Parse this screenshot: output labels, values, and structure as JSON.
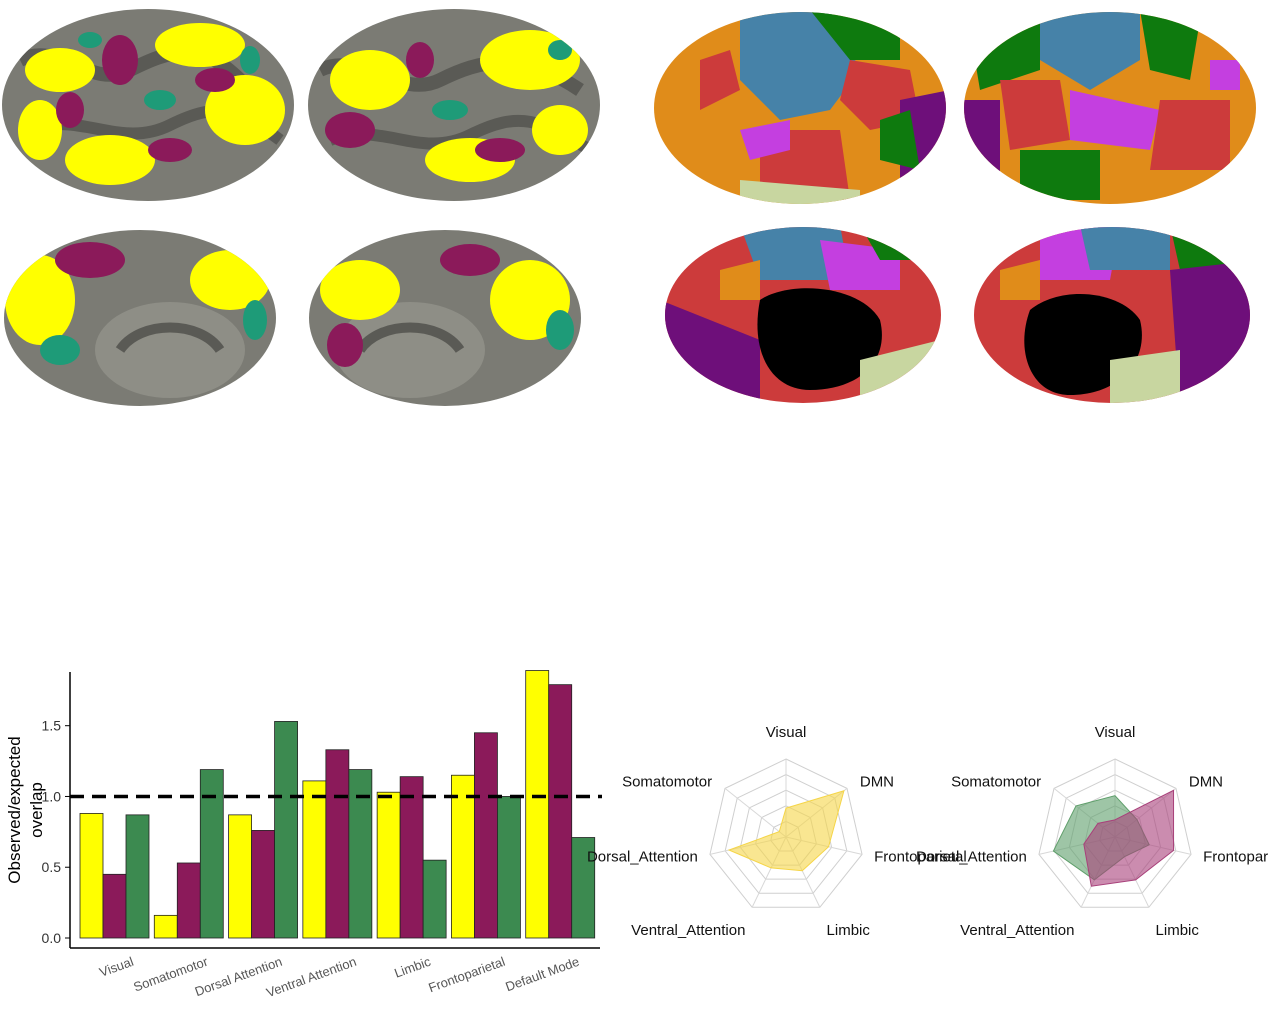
{
  "colors": {
    "yellow": "#FFFF00",
    "magenta": "#8B1A5A",
    "green": "#3C8A50",
    "teal": "#1E9B78",
    "cortex_gray": "#7B7B74",
    "cortex_dark": "#5A5A55",
    "net_blue": "#4682A8",
    "net_green": "#0E7A0E",
    "net_orange": "#E08C1A",
    "net_red": "#CC3B3B",
    "net_violet": "#C43FE0",
    "net_purple": "#6E0F7A",
    "net_cream": "#C8D6A0",
    "radar_fill_yellow": "#F5D547",
    "radar_fill_green": "#5E9E6A",
    "radar_fill_magenta": "#A8407A"
  },
  "chart_data": [
    {
      "type": "bar",
      "ylabel": "Observed/expected overlap",
      "ylim": [
        0,
        1.95
      ],
      "yticks": [
        "0.0",
        "0.5",
        "1.0",
        "1.5"
      ],
      "reference_line": 1.0,
      "categories": [
        "Visual",
        "Somatomotor",
        "Dorsal Attention",
        "Ventral Attention",
        "Limbic",
        "Frontoparietal",
        "Default Mode"
      ],
      "series": [
        {
          "color": "#FFFF00",
          "values": [
            0.88,
            0.16,
            0.87,
            1.11,
            1.03,
            1.15,
            1.89
          ]
        },
        {
          "color": "#8B1A5A",
          "values": [
            0.45,
            0.53,
            0.76,
            1.33,
            1.14,
            1.45,
            1.79
          ]
        },
        {
          "color": "#3C8A50",
          "values": [
            0.87,
            1.19,
            1.53,
            1.19,
            0.55,
            1.0,
            0.71
          ]
        }
      ]
    },
    {
      "type": "radar",
      "axes": [
        "Visual",
        "DMN",
        "Frontoparietal",
        "Limbic",
        "Ventral_Attention",
        "Dorsal_Attention",
        "Somatomotor"
      ],
      "series": [
        {
          "color": "#F5D547",
          "values": [
            0.37,
            0.95,
            0.56,
            0.48,
            0.44,
            0.75,
            0.11
          ]
        }
      ]
    },
    {
      "type": "radar",
      "axes": [
        "Visual",
        "DMN",
        "Frontoparietal",
        "Limbic",
        "Ventral_Attention",
        "Dorsal_Attention",
        "Somatomotor"
      ],
      "series": [
        {
          "color": "#5E9E6A",
          "values": [
            0.53,
            0.36,
            0.45,
            0.28,
            0.61,
            0.81,
            0.64
          ]
        },
        {
          "color": "#A8407A",
          "values": [
            0.22,
            0.96,
            0.77,
            0.61,
            0.7,
            0.41,
            0.28
          ]
        }
      ]
    }
  ]
}
